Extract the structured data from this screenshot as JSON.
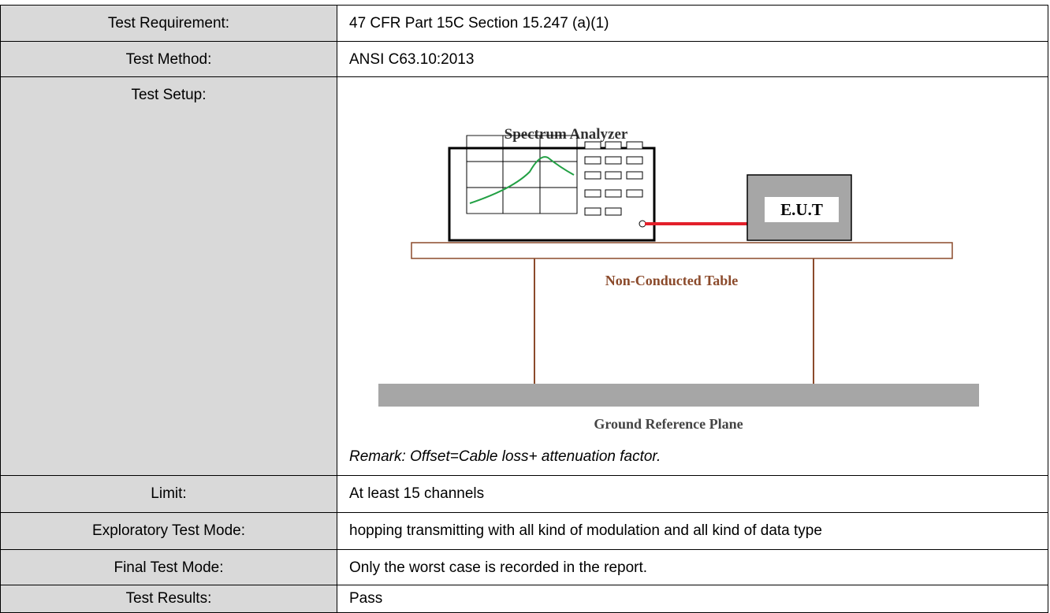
{
  "table": {
    "rows": [
      [
        "Test Requirement:",
        "47 CFR Part 15C Section 15.247 (a)(1)"
      ],
      [
        "Test Method:",
        "ANSI C63.10:2013"
      ],
      [
        "Test Setup:",
        "Remark: Offset=Cable loss+ attenuation factor."
      ],
      [
        "Limit:",
        "At least 15 channels"
      ],
      [
        "Exploratory Test Mode:",
        "hopping transmitting with all kind of modulation and all kind of data type"
      ],
      [
        "Final Test Mode:",
        "Only the worst case is recorded in the report."
      ],
      [
        "Test Results:",
        "Pass"
      ]
    ]
  },
  "diagram": {
    "analyzer": "Spectrum Analyzer",
    "eut": "E.U.T",
    "table": "Non-Conducted Table",
    "ground": "Ground Reference Plane"
  }
}
